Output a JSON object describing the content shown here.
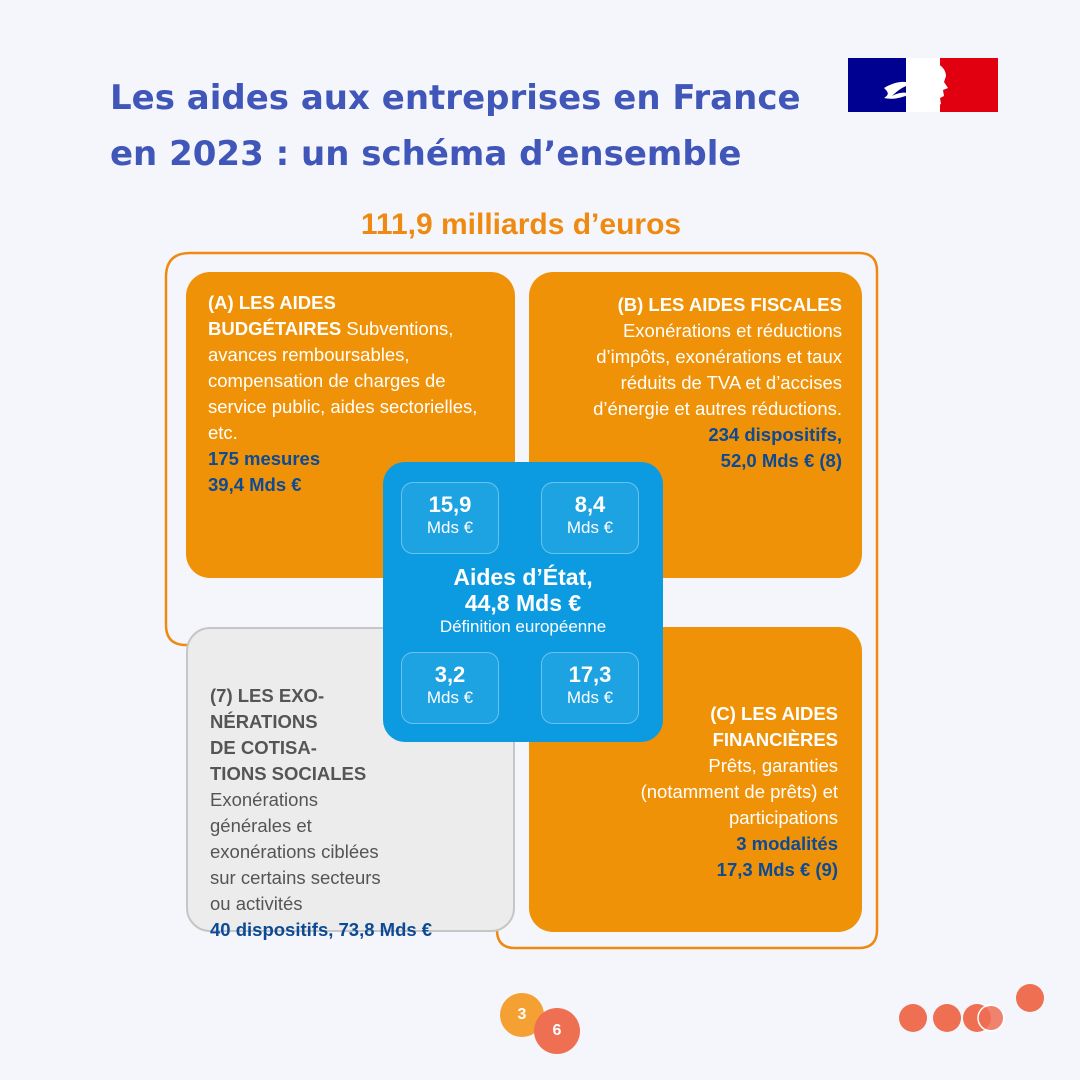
{
  "header": {
    "title_line1": "Les aides aux entreprises en France",
    "title_line2": "en 2023 : un schéma d’ensemble"
  },
  "total": "111,9 milliards d’euros",
  "box_a": {
    "heading_line1": "(A) LES AIDES",
    "heading_line2": "BUDGÉTAIRES",
    "desc": "Subventions, avances remboursables, compensation de charges de service public, aides sectorielles, etc.",
    "count": "175 mesures",
    "amount": "39,4 Mds €"
  },
  "box_b": {
    "heading": "(B) LES AIDES FISCALES",
    "desc": "Exonérations et réductions d’impôts, exonérations et taux réduits de TVA et d’accises d’énergie et autres réductions.",
    "count": "234 dispositifs,",
    "amount": "52,0 Mds € (8)"
  },
  "box_c": {
    "heading_line1": "(C) LES AIDES",
    "heading_line2": "FINANCIÈRES",
    "desc": "Prêts, garanties (notamment de prêts) et participations",
    "count": "3 modalités",
    "amount": "17,3 Mds € (9)"
  },
  "box_7": {
    "heading_line1": "(7) LES EXO-",
    "heading_line2": "NÉRATIONS",
    "heading_line3": "DE COTISA-",
    "heading_line4": "TIONS SOCIALES",
    "desc": "Exonérations générales et exonérations ciblées sur certains secteurs ou activités",
    "summary": "40 dispositifs, 73,8 Mds €"
  },
  "state_aid": {
    "title": "Aides d’État,",
    "amount": "44,8 Mds €",
    "subtitle": "Définition européenne",
    "unit": "Mds €",
    "cells": [
      "15,9",
      "8,4",
      "3,2",
      "17,3"
    ]
  },
  "pages": {
    "current": "3",
    "total": "6"
  },
  "colors": {
    "title": "#4056b8",
    "orange": "#f09207",
    "state_blue": "#0c9be0",
    "navy_text": "#0c4a94",
    "gray_box": "#ececec"
  }
}
